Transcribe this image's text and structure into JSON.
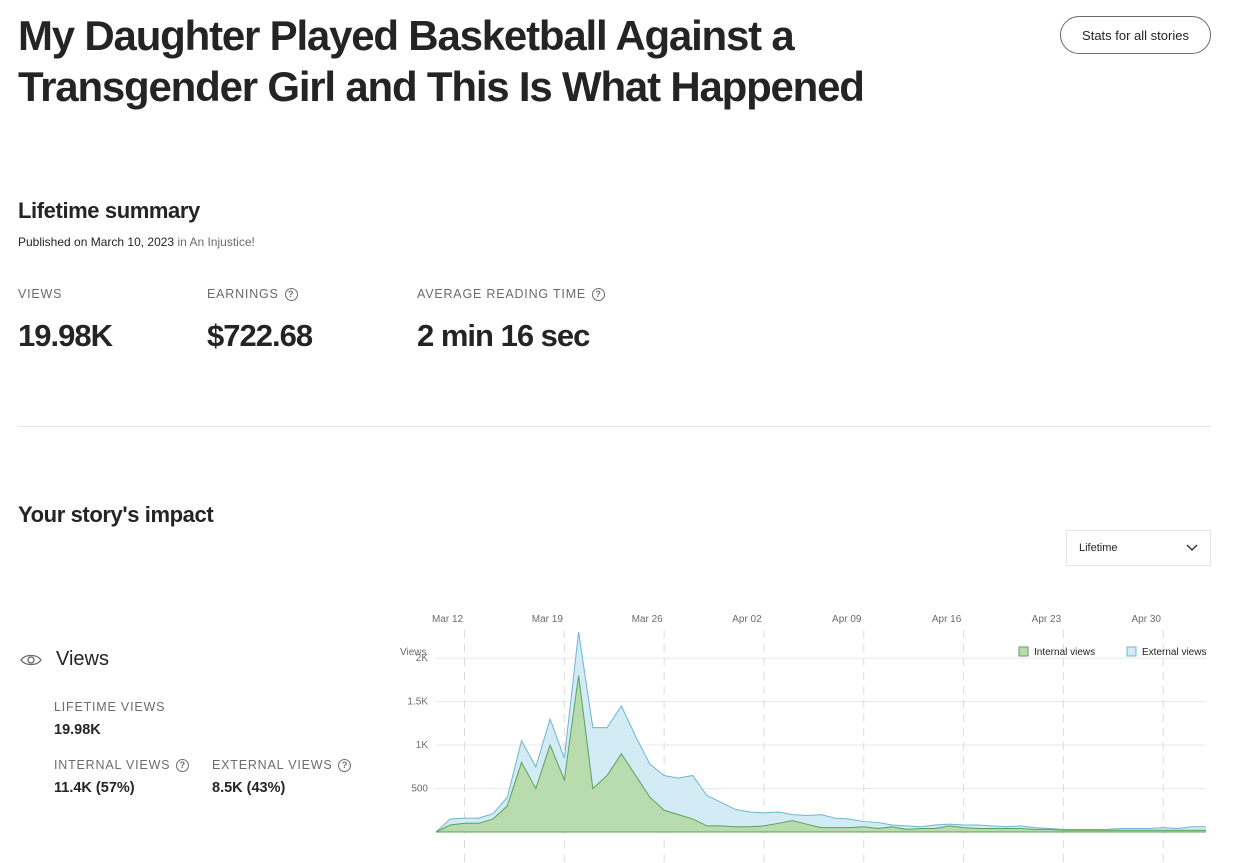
{
  "story": {
    "title_line1": "My Daughter Played Basketball Against a",
    "title_line2": "Transgender Girl and This Is What Happened"
  },
  "header": {
    "stats_button": "Stats for all stories"
  },
  "summary": {
    "title": "Lifetime summary",
    "published_text": "Published on March 10, 2023",
    "published_in": "in An Injustice!",
    "metrics": {
      "views": {
        "label": "VIEWS",
        "value": "19.98K"
      },
      "earnings": {
        "label": "EARNINGS",
        "value": "$722.68"
      },
      "reading": {
        "label": "AVERAGE READING TIME",
        "value": "2 min 16 sec"
      }
    }
  },
  "impact": {
    "title": "Your story's impact",
    "range": {
      "selected": "Lifetime"
    },
    "views_section": {
      "title": "Views",
      "lifetime_label": "LIFETIME VIEWS",
      "lifetime_value": "19.98K",
      "internal_label": "INTERNAL VIEWS",
      "internal_value": "11.4K (57%)",
      "external_label": "EXTERNAL VIEWS",
      "external_value": "8.5K (43%)"
    }
  },
  "icons": {
    "help": "help-circle-icon",
    "eye": "eye-icon",
    "chevron": "chevron-down-icon"
  },
  "chart_data": {
    "type": "area",
    "ylabel": "Views",
    "x_ticks": [
      "Mar 12",
      "Mar 19",
      "Mar 26",
      "Apr 02",
      "Apr 09",
      "Apr 16",
      "Apr 23",
      "Apr 30"
    ],
    "y_ticks": [
      "500",
      "1K",
      "1.5K",
      "2K"
    ],
    "ylim": [
      0,
      2300
    ],
    "legend_position": "top-right",
    "x_start": "Mar 10",
    "series": [
      {
        "name": "Internal views",
        "color": "#b8dcae",
        "stroke": "#5aa25c",
        "values": [
          0,
          80,
          100,
          100,
          150,
          300,
          800,
          500,
          1000,
          600,
          1800,
          500,
          650,
          900,
          650,
          400,
          250,
          200,
          150,
          70,
          70,
          60,
          60,
          70,
          100,
          130,
          90,
          50,
          50,
          50,
          60,
          40,
          60,
          30,
          40,
          40,
          70,
          50,
          40,
          40,
          40,
          40,
          30,
          30,
          20,
          20,
          20,
          20,
          20,
          20,
          20,
          20,
          20,
          20,
          20
        ]
      },
      {
        "name": "External views",
        "color": "#d2ebf5",
        "stroke": "#6eb6cf",
        "values": [
          0,
          70,
          60,
          60,
          60,
          100,
          250,
          250,
          300,
          250,
          500,
          700,
          550,
          550,
          450,
          380,
          400,
          420,
          500,
          350,
          270,
          200,
          170,
          150,
          130,
          70,
          100,
          150,
          110,
          100,
          60,
          70,
          20,
          40,
          20,
          40,
          20,
          30,
          40,
          30,
          20,
          30,
          20,
          10,
          10,
          10,
          10,
          10,
          20,
          20,
          20,
          30,
          20,
          40,
          40
        ]
      }
    ]
  }
}
